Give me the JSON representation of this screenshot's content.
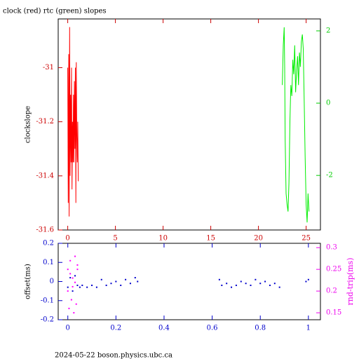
{
  "chart_data": [
    {
      "type": "line",
      "title": "clock (red) rtc (green) slopes",
      "ylabel": "clockslope",
      "xlim": [
        -1,
        26.5
      ],
      "xticks": [
        0,
        5,
        10,
        15,
        20,
        25
      ],
      "ylim": [
        -31.6,
        -30.82
      ],
      "yticks": [
        -31,
        -31.2,
        -31.4,
        -31.6
      ],
      "y2lim": [
        -3.51,
        2.33
      ],
      "y2ticks": [
        2,
        0,
        -2
      ],
      "xcolor": "#cc0000",
      "ycolor": "#cc0000",
      "y2color": "#00cc00",
      "series": [
        {
          "name": "clock",
          "color": "#ff0000",
          "x": [
            0.0,
            0.05,
            0.1,
            0.15,
            0.2,
            0.25,
            0.3,
            0.35,
            0.4,
            0.45,
            0.5,
            0.55,
            0.6,
            0.65,
            0.7,
            0.75,
            0.8,
            0.85,
            0.9,
            0.95,
            1.0,
            1.05,
            1.1
          ],
          "values": [
            -31.0,
            -31.5,
            -30.95,
            -31.55,
            -30.85,
            -31.4,
            -31.1,
            -31.35,
            -31.0,
            -31.45,
            -31.2,
            -31.35,
            -31.1,
            -31.35,
            -31.05,
            -31.3,
            -31.0,
            -31.5,
            -30.98,
            -31.25,
            -31.35,
            -31.2,
            -31.42
          ]
        },
        {
          "name": "rtc",
          "color": "#00ee00",
          "axis": "y2",
          "x": [
            22.5,
            22.6,
            22.7,
            22.75,
            22.8,
            22.9,
            23.0,
            23.1,
            23.2,
            23.3,
            23.4,
            23.5,
            23.6,
            23.7,
            23.8,
            23.9,
            24.0,
            24.1,
            24.2,
            24.3,
            24.4,
            24.5,
            24.6,
            24.7,
            24.8,
            24.9,
            25.0,
            25.1,
            25.2,
            25.3
          ],
          "values": [
            0.5,
            1.6,
            2.1,
            1.0,
            -1.0,
            -2.5,
            -2.8,
            -3.0,
            -2.2,
            -0.5,
            0.5,
            0.2,
            1.2,
            0.8,
            1.6,
            0.3,
            0.9,
            1.3,
            0.5,
            1.4,
            1.0,
            1.7,
            1.9,
            1.5,
            0.0,
            -1.5,
            -2.8,
            -3.3,
            -2.5,
            -3.0
          ]
        }
      ]
    },
    {
      "type": "scatter",
      "ylabel": "offset(ms)",
      "y2label": "rnd-trip(ms)",
      "xlim": [
        -0.04,
        1.05
      ],
      "xticks": [
        0,
        0.2,
        0.4,
        0.6,
        0.8,
        1
      ],
      "ylim": [
        -0.2,
        0.2
      ],
      "yticks": [
        -0.2,
        -0.1,
        0,
        0.1,
        0.2
      ],
      "y2lim": [
        0.134,
        0.31
      ],
      "y2ticks": [
        0.15,
        0.2,
        0.25,
        0.3
      ],
      "xcolor": "#0000cc",
      "ycolor": "#0000cc",
      "y2color": "#ee00ee",
      "series": [
        {
          "name": "offset",
          "color": "#0000cc",
          "x": [
            0.0,
            0.01,
            0.02,
            0.03,
            0.04,
            0.05,
            0.06,
            0.08,
            0.1,
            0.12,
            0.14,
            0.16,
            0.18,
            0.2,
            0.22,
            0.24,
            0.26,
            0.28,
            0.29,
            0.63,
            0.64,
            0.66,
            0.68,
            0.7,
            0.72,
            0.74,
            0.76,
            0.78,
            0.8,
            0.82,
            0.84,
            0.86,
            0.88,
            0.99,
            1.0
          ],
          "values": [
            -0.03,
            0.02,
            -0.05,
            0.03,
            -0.02,
            -0.03,
            -0.02,
            -0.03,
            -0.02,
            -0.03,
            0.01,
            -0.02,
            -0.01,
            0.0,
            -0.02,
            0.01,
            -0.01,
            0.02,
            0.0,
            0.01,
            -0.02,
            -0.01,
            -0.03,
            -0.02,
            0.0,
            -0.01,
            -0.02,
            0.01,
            -0.01,
            0.0,
            -0.02,
            -0.01,
            -0.03,
            0.0,
            0.01
          ]
        },
        {
          "name": "rnd-trip",
          "color": "#ff00ff",
          "axis": "y2",
          "x": [
            0.0,
            0.005,
            0.01,
            0.015,
            0.02,
            0.025,
            0.03,
            0.035,
            0.04,
            0.0,
            0.01,
            0.02,
            0.03,
            0.04
          ],
          "values": [
            0.25,
            0.16,
            0.27,
            0.18,
            0.23,
            0.15,
            0.28,
            0.17,
            0.26,
            0.2,
            0.24,
            0.21,
            0.22,
            0.25
          ]
        }
      ]
    }
  ],
  "footer": "2024-05-22 boson.physics.ubc.ca"
}
